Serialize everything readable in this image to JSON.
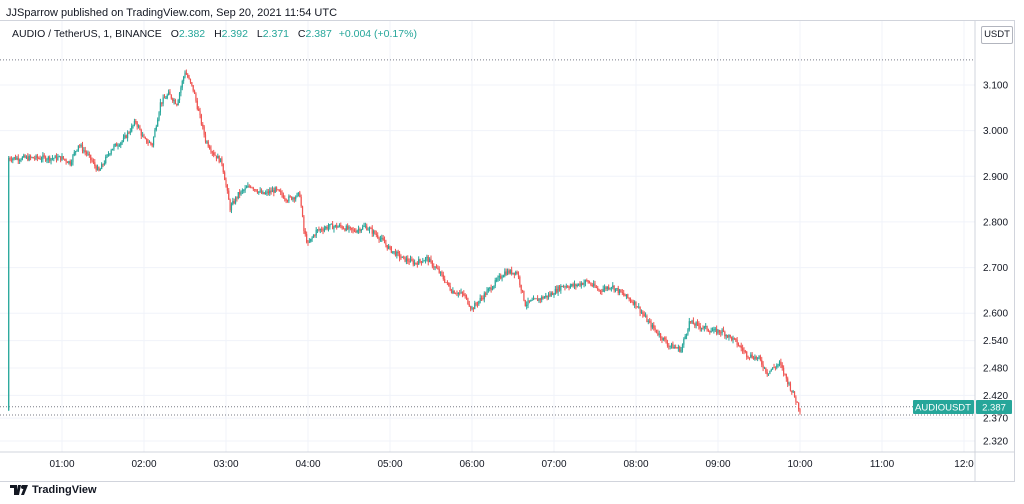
{
  "publisher_line": "JJSparrow published on TradingView.com, Sep 20, 2021 11:54 UTC",
  "legend": {
    "symbol": "AUDIO / TetherUS, 1, BINANCE",
    "open_label": "O",
    "open": "2.382",
    "high_label": "H",
    "high": "2.392",
    "low_label": "L",
    "low": "2.371",
    "close_label": "C",
    "close": "2.387",
    "change": "+0.004 (+0.17%)"
  },
  "unit": "USDT",
  "price_tag": {
    "symbol": "AUDIOUSDT",
    "price": "2.387"
  },
  "footer": {
    "brand": "TradingView"
  },
  "colors": {
    "up": "#26a69a",
    "down": "#ef5350",
    "grid": "#f0f3fa",
    "tag": "#26a69a"
  },
  "chart_data": {
    "type": "candlestick",
    "y_ticks": [
      {
        "label": "3.100",
        "value": 3.1
      },
      {
        "label": "3.000",
        "value": 3.0
      },
      {
        "label": "2.900",
        "value": 2.9
      },
      {
        "label": "2.800",
        "value": 2.8
      },
      {
        "label": "2.700",
        "value": 2.7
      },
      {
        "label": "2.600",
        "value": 2.6
      },
      {
        "label": "2.540",
        "value": 2.54
      },
      {
        "label": "2.480",
        "value": 2.48
      },
      {
        "label": "2.420",
        "value": 2.42
      },
      {
        "label": "2.370",
        "value": 2.37
      },
      {
        "label": "2.320",
        "value": 2.32
      }
    ],
    "x_ticks": [
      "01:00",
      "02:00",
      "03:00",
      "04:00",
      "05:00",
      "06:00",
      "07:00",
      "08:00",
      "09:00",
      "10:00",
      "11:00",
      "12:0"
    ],
    "dotted_levels": [
      3.155,
      2.395,
      2.377
    ],
    "close_path": [
      [
        0,
        2.94
      ],
      [
        0.1,
        2.93
      ],
      [
        0.2,
        2.97
      ],
      [
        0.3,
        2.95
      ],
      [
        0.45,
        2.91
      ],
      [
        0.6,
        2.96
      ],
      [
        0.75,
        2.98
      ],
      [
        0.9,
        3.02
      ],
      [
        1.0,
        2.98
      ],
      [
        1.1,
        2.97
      ],
      [
        1.2,
        3.06
      ],
      [
        1.3,
        3.08
      ],
      [
        1.4,
        3.06
      ],
      [
        1.5,
        3.13
      ],
      [
        1.6,
        3.09
      ],
      [
        1.75,
        2.98
      ],
      [
        1.85,
        2.95
      ],
      [
        1.95,
        2.93
      ],
      [
        2.05,
        2.83
      ],
      [
        2.15,
        2.86
      ],
      [
        2.3,
        2.88
      ],
      [
        2.45,
        2.86
      ],
      [
        2.6,
        2.87
      ],
      [
        2.75,
        2.85
      ],
      [
        2.9,
        2.86
      ],
      [
        2.95,
        2.78
      ],
      [
        3.0,
        2.75
      ],
      [
        3.1,
        2.78
      ],
      [
        3.25,
        2.79
      ],
      [
        3.4,
        2.79
      ],
      [
        3.55,
        2.78
      ],
      [
        3.7,
        2.79
      ],
      [
        3.85,
        2.77
      ],
      [
        4.0,
        2.74
      ],
      [
        4.15,
        2.72
      ],
      [
        4.3,
        2.71
      ],
      [
        4.45,
        2.72
      ],
      [
        4.6,
        2.69
      ],
      [
        4.75,
        2.65
      ],
      [
        4.9,
        2.64
      ],
      [
        5.0,
        2.61
      ],
      [
        5.1,
        2.63
      ],
      [
        5.25,
        2.66
      ],
      [
        5.4,
        2.69
      ],
      [
        5.55,
        2.69
      ],
      [
        5.65,
        2.62
      ],
      [
        5.8,
        2.63
      ],
      [
        5.95,
        2.64
      ],
      [
        6.1,
        2.66
      ],
      [
        6.25,
        2.66
      ],
      [
        6.4,
        2.67
      ],
      [
        6.55,
        2.65
      ],
      [
        6.7,
        2.66
      ],
      [
        6.85,
        2.64
      ],
      [
        7.0,
        2.62
      ],
      [
        7.15,
        2.58
      ],
      [
        7.3,
        2.55
      ],
      [
        7.4,
        2.53
      ],
      [
        7.55,
        2.52
      ],
      [
        7.65,
        2.58
      ],
      [
        7.8,
        2.57
      ],
      [
        7.95,
        2.56
      ],
      [
        8.05,
        2.56
      ],
      [
        8.2,
        2.54
      ],
      [
        8.35,
        2.51
      ],
      [
        8.5,
        2.5
      ],
      [
        8.6,
        2.47
      ],
      [
        8.75,
        2.49
      ],
      [
        8.85,
        2.45
      ],
      [
        8.95,
        2.41
      ],
      [
        9.0,
        2.387
      ]
    ]
  }
}
